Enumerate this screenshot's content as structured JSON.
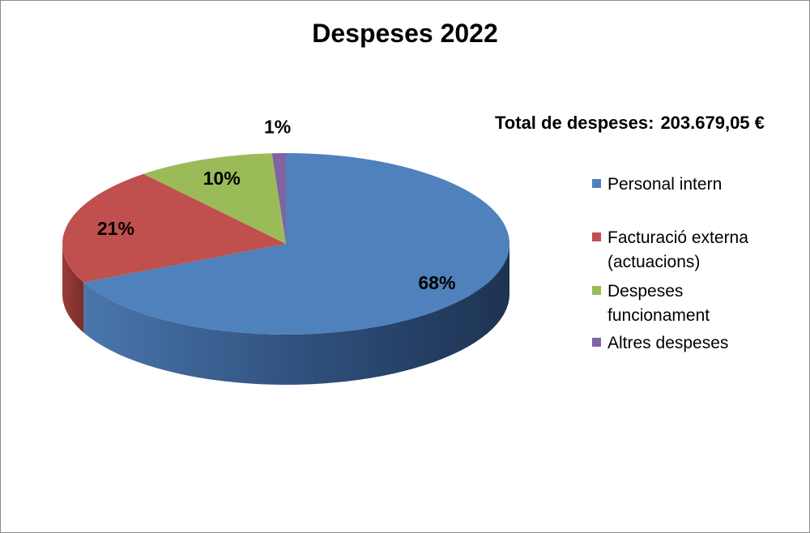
{
  "title": "Despeses 2022",
  "total": {
    "label": "Total de despeses:",
    "value": "203.679,05 €"
  },
  "chart_data": {
    "type": "pie",
    "title": "Despeses 2022",
    "style": "3d",
    "categories": [
      "Personal intern",
      "Facturació externa (actuacions)",
      "Despeses funcionament",
      "Altres despeses"
    ],
    "values": [
      68,
      21,
      10,
      1
    ],
    "data_labels": [
      "68%",
      "21%",
      "10%",
      "1%"
    ],
    "colors": [
      "#4F81BD",
      "#C0504D",
      "#9BBB59",
      "#8064A2"
    ],
    "legend_position": "right"
  },
  "legend": [
    {
      "label": "Personal intern",
      "color": "#4F81BD"
    },
    {
      "label": "Facturació externa (actuacions)",
      "color": "#C0504D"
    },
    {
      "label": "Despeses funcionament",
      "color": "#9BBB59"
    },
    {
      "label": "Altres despeses",
      "color": "#8064A2"
    }
  ]
}
